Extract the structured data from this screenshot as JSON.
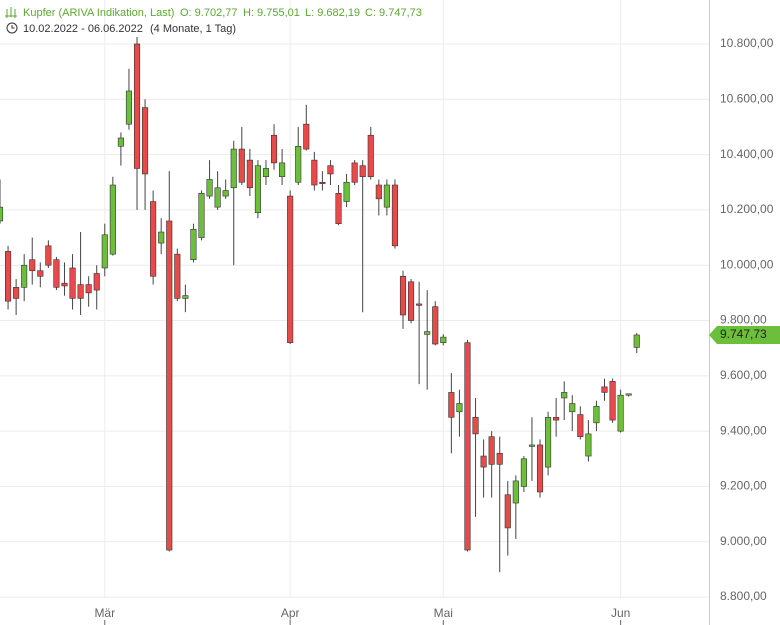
{
  "chart_data": {
    "type": "candlestick",
    "title": "Kupfer (ARIVA Indikation, Last)",
    "ohlc_labels": [
      "O: 9.702,77",
      "H: 9.755,01",
      "L: 9.682,19",
      "C: 9.747,73"
    ],
    "period": "10.02.2022 - 06.06.2022",
    "span": "(4 Monate, 1 Tag)",
    "categories": [
      null,
      null,
      null,
      null,
      null,
      null,
      null,
      null,
      null,
      null,
      null,
      null,
      null,
      null,
      null,
      null,
      null,
      null,
      null,
      null,
      null,
      null,
      null,
      null,
      null,
      null,
      null,
      null,
      null,
      null,
      null,
      null,
      null,
      null,
      null,
      null,
      null,
      null,
      null,
      null,
      null,
      null,
      null,
      null,
      null,
      null,
      null,
      null,
      null,
      null,
      null,
      null,
      null,
      null,
      null,
      null,
      null,
      null,
      null,
      null,
      null,
      null,
      null,
      null,
      null,
      null,
      null,
      null,
      null,
      null,
      null,
      null,
      null,
      null,
      null,
      null,
      null,
      null,
      null,
      null
    ],
    "open": [
      10160,
      10050,
      9920,
      9920,
      10020,
      9980,
      10070,
      10020,
      9935,
      9990,
      9930,
      9930,
      9970,
      9990,
      10040,
      10430,
      10510,
      10800,
      10570,
      10230,
      10080,
      10160,
      10040,
      9880,
      10020,
      10100,
      10250,
      10210,
      10250,
      10280,
      10420,
      10380,
      10190,
      10320,
      10470,
      10320,
      10250,
      10300,
      10510,
      10380,
      10300,
      10360,
      10260,
      10230,
      10370,
      10360,
      10470,
      10290,
      10210,
      10290,
      9960,
      9940,
      9860,
      9750,
      9850,
      9720,
      9540,
      9470,
      9720,
      9450,
      9310,
      9380,
      9320,
      9170,
      9140,
      9200,
      9345,
      9350,
      9270,
      9450,
      9520,
      9470,
      9460,
      9310,
      9430,
      9560,
      9580,
      9400,
      9530,
      9702.77
    ],
    "high": [
      10310,
      10070,
      9950,
      10040,
      10100,
      10010,
      10090,
      10030,
      10010,
      10040,
      10120,
      9960,
      10000,
      10150,
      10320,
      10480,
      10710,
      10825,
      10600,
      10270,
      10170,
      10340,
      10060,
      9930,
      10150,
      10270,
      10380,
      10340,
      10310,
      10450,
      10500,
      10420,
      10380,
      10380,
      10510,
      10420,
      10270,
      10500,
      10580,
      10410,
      10340,
      10380,
      10290,
      10330,
      10380,
      10380,
      10500,
      10310,
      10310,
      10310,
      9980,
      9950,
      9940,
      9910,
      9870,
      9750,
      9610,
      9550,
      9730,
      9520,
      9370,
      9400,
      9380,
      9220,
      9240,
      9310,
      9450,
      9370,
      9470,
      9520,
      9580,
      9530,
      9490,
      9440,
      9510,
      9590,
      9590,
      9550,
      9535,
      9755.01
    ],
    "low": [
      10150,
      9840,
      9820,
      9870,
      9930,
      9920,
      9990,
      9910,
      9890,
      9840,
      9820,
      9850,
      9840,
      9960,
      10035,
      10360,
      10490,
      10200,
      10200,
      9930,
      10040,
      8965,
      9870,
      9830,
      10010,
      10090,
      10240,
      10200,
      10240,
      10000,
      10290,
      10250,
      10170,
      10290,
      10345,
      10290,
      9715,
      10290,
      10415,
      10270,
      10270,
      10290,
      10145,
      10210,
      10290,
      9830,
      10310,
      10180,
      10180,
      10060,
      9770,
      9790,
      9570,
      9550,
      9710,
      9710,
      9320,
      9380,
      8965,
      9090,
      9160,
      9160,
      8890,
      8950,
      9010,
      9180,
      9220,
      9160,
      9240,
      9380,
      9440,
      9400,
      9370,
      9290,
      9400,
      9510,
      9430,
      9395,
      9525,
      9682.19
    ],
    "close": [
      10210,
      9870,
      9880,
      10000,
      9980,
      9960,
      10000,
      9920,
      9925,
      9880,
      9880,
      9900,
      9910,
      10110,
      10290,
      10460,
      10630,
      10350,
      10330,
      9960,
      10120,
      8970,
      9880,
      9890,
      10130,
      10260,
      10310,
      10280,
      10270,
      10420,
      10300,
      10280,
      10360,
      10350,
      10370,
      10370,
      9720,
      10430,
      10420,
      10290,
      10295,
      10330,
      10150,
      10300,
      10300,
      10320,
      10320,
      10240,
      10290,
      10070,
      9820,
      9800,
      9855,
      9760,
      9715,
      9740,
      9450,
      9500,
      8970,
      9390,
      9270,
      9280,
      9280,
      9050,
      9220,
      9300,
      9350,
      9180,
      9450,
      9440,
      9540,
      9500,
      9380,
      9390,
      9490,
      9540,
      9440,
      9530,
      9535,
      9747.73
    ],
    "up_color": "#6cbf3a",
    "down_color": "#e84a4a",
    "ylim": [
      8699,
      10959
    ],
    "yticks": [
      {
        "value": 8800,
        "label": "8.800,00"
      },
      {
        "value": 9000,
        "label": "9.000,00"
      },
      {
        "value": 9200,
        "label": "9.200,00"
      },
      {
        "value": 9400,
        "label": "9.400,00"
      },
      {
        "value": 9600,
        "label": "9.600,00"
      },
      {
        "value": 9800,
        "label": "9.800,00"
      },
      {
        "value": 10000,
        "label": "10.000,00"
      },
      {
        "value": 10200,
        "label": "10.200,00"
      },
      {
        "value": 10400,
        "label": "10.400,00"
      },
      {
        "value": 10600,
        "label": "10.600,00"
      },
      {
        "value": 10800,
        "label": "10.800,00"
      }
    ],
    "xticks": [
      {
        "value": 13,
        "label": "Mär"
      },
      {
        "value": 36,
        "label": "Apr"
      },
      {
        "value": 55,
        "label": "Mai"
      },
      {
        "value": 77,
        "label": "Jun"
      }
    ],
    "last_price": {
      "value": 9747.73,
      "label": "9.747,73"
    },
    "grid": true
  }
}
